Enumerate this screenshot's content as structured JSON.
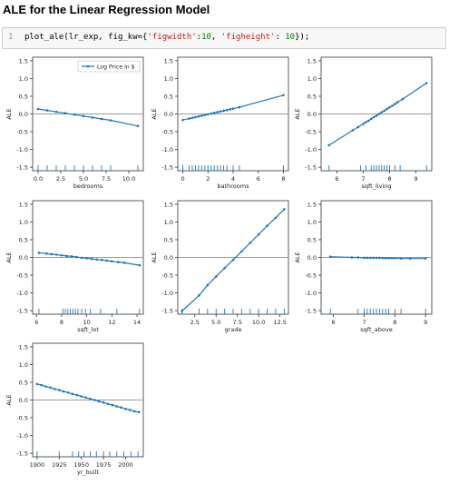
{
  "heading": "ALE for the Linear Regression Model",
  "cell": {
    "line_number": "1",
    "code_parts": [
      {
        "t": "plot_ale(lr_exp, fig_kw={",
        "c": ""
      },
      {
        "t": "'figwidth'",
        "c": "s"
      },
      {
        "t": ":",
        "c": ""
      },
      {
        "t": "10",
        "c": "n"
      },
      {
        "t": ", ",
        "c": ""
      },
      {
        "t": "'figheight'",
        "c": "s"
      },
      {
        "t": ": ",
        "c": ""
      },
      {
        "t": "10",
        "c": "n"
      },
      {
        "t": "});",
        "c": ""
      }
    ]
  },
  "colors": {
    "line": "#1f77b4",
    "zero": "#9a9a9a",
    "axis": "#333333"
  },
  "chart_data": [
    {
      "type": "line",
      "xlabel": "bedrooms",
      "ylabel": "ALE",
      "xlim": [
        -0.6,
        11.6
      ],
      "ylim": [
        -1.6,
        1.6
      ],
      "xticks": [
        0.0,
        2.5,
        5.0,
        7.5,
        10.0
      ],
      "xtick_labels": [
        "0.0",
        "2.5",
        "5.0",
        "7.5",
        "10.0"
      ],
      "yticks": [
        -1.5,
        -1.0,
        -0.5,
        0.0,
        0.5,
        1.0,
        1.5
      ],
      "ytick_labels": [
        "-1.5",
        "-1.0",
        "-0.5",
        "0.0",
        "0.5",
        "1.0",
        "1.5"
      ],
      "legend": {
        "label": "Log Price in $",
        "placement": "upper-right"
      },
      "series": [
        {
          "name": "Log Price in $",
          "x": [
            0,
            1,
            2,
            3,
            4,
            5,
            6,
            7,
            8,
            11
          ],
          "y": [
            0.14,
            0.1,
            0.06,
            0.02,
            -0.02,
            -0.06,
            -0.1,
            -0.14,
            -0.18,
            -0.34
          ]
        }
      ],
      "rug": [
        0,
        1,
        2,
        3,
        4,
        5,
        6,
        7,
        8,
        11
      ]
    },
    {
      "type": "line",
      "xlabel": "bathrooms",
      "ylabel": "ALE",
      "xlim": [
        -0.4,
        8.4
      ],
      "ylim": [
        -1.6,
        1.6
      ],
      "xticks": [
        0,
        2,
        4,
        6,
        8
      ],
      "xtick_labels": [
        "0",
        "2",
        "4",
        "6",
        "8"
      ],
      "yticks": [
        -1.5,
        -1.0,
        -0.5,
        0.0,
        0.5,
        1.0,
        1.5
      ],
      "ytick_labels": [
        "-1.5",
        "-1.0",
        "-0.5",
        "0.0",
        "0.5",
        "1.0",
        "1.5"
      ],
      "series": [
        {
          "x": [
            0,
            0.5,
            0.75,
            1,
            1.25,
            1.5,
            1.75,
            2,
            2.25,
            2.5,
            2.75,
            3,
            3.25,
            3.5,
            3.75,
            4,
            4.5,
            8
          ],
          "y": [
            -0.17,
            -0.13,
            -0.11,
            -0.09,
            -0.07,
            -0.05,
            -0.03,
            -0.01,
            0.01,
            0.03,
            0.05,
            0.07,
            0.09,
            0.11,
            0.13,
            0.15,
            0.19,
            0.53
          ]
        }
      ],
      "rug": [
        0,
        0.5,
        0.75,
        1,
        1.25,
        1.5,
        1.75,
        2,
        2.25,
        2.5,
        2.75,
        3,
        3.25,
        3.5,
        4,
        4.5,
        8
      ]
    },
    {
      "type": "line",
      "xlabel": "sqft_living",
      "ylabel": "ALE",
      "xlim": [
        5.4,
        9.6
      ],
      "ylim": [
        -1.6,
        1.6
      ],
      "xticks": [
        6,
        7,
        8,
        9
      ],
      "xtick_labels": [
        "6",
        "7",
        "8",
        "9"
      ],
      "yticks": [
        -1.5,
        -1.0,
        -0.5,
        0.0,
        0.5,
        1.0,
        1.5
      ],
      "ytick_labels": [
        "-1.5",
        "-1.0",
        "-0.5",
        "0.0",
        "0.5",
        "1.0",
        "1.5"
      ],
      "series": [
        {
          "x": [
            5.7,
            6.6,
            6.8,
            7.0,
            7.1,
            7.2,
            7.3,
            7.4,
            7.5,
            7.6,
            7.7,
            7.8,
            7.9,
            8.0,
            8.1,
            8.2,
            8.3,
            8.5,
            9.4
          ],
          "y": [
            -0.88,
            -0.46,
            -0.37,
            -0.28,
            -0.23,
            -0.19,
            -0.14,
            -0.09,
            -0.05,
            0.0,
            0.05,
            0.09,
            0.14,
            0.19,
            0.23,
            0.28,
            0.33,
            0.42,
            0.87
          ]
        }
      ],
      "rug": [
        5.7,
        6.9,
        7.1,
        7.3,
        7.4,
        7.5,
        7.6,
        7.7,
        7.8,
        7.9,
        8.0,
        8.2,
        8.4,
        9.4
      ]
    },
    {
      "type": "line",
      "xlabel": "sqft_lot",
      "ylabel": "ALE",
      "xlim": [
        5.7,
        14.5
      ],
      "ylim": [
        -1.6,
        1.6
      ],
      "xticks": [
        6,
        8,
        10,
        12,
        14
      ],
      "xtick_labels": [
        "6",
        "8",
        "10",
        "12",
        "14"
      ],
      "yticks": [
        -1.5,
        -1.0,
        -0.5,
        0.0,
        0.5,
        1.0,
        1.5
      ],
      "ytick_labels": [
        "-1.5",
        "-1.0",
        "-0.5",
        "0.0",
        "0.5",
        "1.0",
        "1.5"
      ],
      "series": [
        {
          "x": [
            6.2,
            6.8,
            7.2,
            7.6,
            8.0,
            8.4,
            8.8,
            9.2,
            9.6,
            10.0,
            10.4,
            10.8,
            11.2,
            11.6,
            12.0,
            12.5,
            13.0,
            14.2
          ],
          "y": [
            0.13,
            0.11,
            0.09,
            0.08,
            0.06,
            0.04,
            0.03,
            0.01,
            -0.01,
            -0.02,
            -0.04,
            -0.06,
            -0.07,
            -0.09,
            -0.11,
            -0.13,
            -0.15,
            -0.22
          ]
        }
      ],
      "rug": [
        6.2,
        8.1,
        8.3,
        8.5,
        8.7,
        8.9,
        9.1,
        9.3,
        9.6,
        9.9,
        10.3,
        11.1,
        12.4,
        14.2
      ]
    },
    {
      "type": "line",
      "xlabel": "grade",
      "ylabel": "ALE",
      "xlim": [
        0.5,
        13.5
      ],
      "ylim": [
        -1.6,
        1.6
      ],
      "xticks": [
        2.5,
        5.0,
        7.5,
        10.0,
        12.5
      ],
      "xtick_labels": [
        "2.5",
        "5.0",
        "7.5",
        "10.0",
        "12.5"
      ],
      "yticks": [
        -1.5,
        -1.0,
        -0.5,
        0.0,
        0.5,
        1.0,
        1.5
      ],
      "ytick_labels": [
        "-1.5",
        "-1.0",
        "-0.5",
        "0.0",
        "0.5",
        "1.0",
        "1.5"
      ],
      "series": [
        {
          "x": [
            1,
            3,
            4,
            5,
            6,
            7,
            8,
            9,
            10,
            11,
            12,
            13
          ],
          "y": [
            -1.51,
            -1.07,
            -0.78,
            -0.54,
            -0.3,
            -0.07,
            0.17,
            0.41,
            0.65,
            0.89,
            1.12,
            1.36
          ]
        }
      ],
      "rug": [
        1,
        3,
        4,
        5,
        6,
        7,
        8,
        9,
        10,
        11,
        12,
        13
      ]
    },
    {
      "type": "line",
      "xlabel": "sqft_above",
      "ylabel": "ALE",
      "xlim": [
        5.6,
        9.2
      ],
      "ylim": [
        -1.6,
        1.6
      ],
      "xticks": [
        6,
        7,
        8,
        9
      ],
      "xtick_labels": [
        "6",
        "7",
        "8",
        "9"
      ],
      "yticks": [
        -1.5,
        -1.0,
        -0.5,
        0.0,
        0.5,
        1.0,
        1.5
      ],
      "ytick_labels": [
        "-1.5",
        "-1.0",
        "-0.5",
        "0.0",
        "0.5",
        "1.0",
        "1.5"
      ],
      "series": [
        {
          "x": [
            5.9,
            6.6,
            6.8,
            7.0,
            7.1,
            7.2,
            7.3,
            7.4,
            7.5,
            7.6,
            7.7,
            7.8,
            7.9,
            8.0,
            8.2,
            8.5,
            9.0
          ],
          "y": [
            0.02,
            0.0,
            0.0,
            -0.01,
            -0.01,
            -0.01,
            -0.01,
            -0.01,
            -0.01,
            -0.02,
            -0.02,
            -0.02,
            -0.02,
            -0.02,
            -0.03,
            -0.03,
            -0.03
          ]
        }
      ],
      "rug": [
        5.9,
        6.8,
        7.0,
        7.1,
        7.2,
        7.3,
        7.4,
        7.5,
        7.6,
        7.7,
        7.8,
        8.0,
        8.2,
        9.0
      ]
    },
    {
      "type": "line",
      "xlabel": "yr_built",
      "ylabel": "ALE",
      "xlim": [
        1895,
        2020
      ],
      "ylim": [
        -1.6,
        1.6
      ],
      "xticks": [
        1900,
        1925,
        1950,
        1975,
        2000
      ],
      "xtick_labels": [
        "1900",
        "1925",
        "1950",
        "1975",
        "2000"
      ],
      "yticks": [
        -1.5,
        -1.0,
        -0.5,
        0.0,
        0.5,
        1.0,
        1.5
      ],
      "ytick_labels": [
        "-1.5",
        "-1.0",
        "-0.5",
        "0.0",
        "0.5",
        "1.0",
        "1.5"
      ],
      "series": [
        {
          "x": [
            1900,
            1905,
            1910,
            1915,
            1920,
            1925,
            1930,
            1935,
            1940,
            1945,
            1950,
            1955,
            1960,
            1965,
            1970,
            1975,
            1980,
            1985,
            1990,
            1995,
            2000,
            2005,
            2010,
            2015
          ],
          "y": [
            0.45,
            0.42,
            0.38,
            0.35,
            0.31,
            0.28,
            0.24,
            0.21,
            0.17,
            0.14,
            0.1,
            0.07,
            0.03,
            0.0,
            -0.04,
            -0.07,
            -0.11,
            -0.14,
            -0.18,
            -0.21,
            -0.25,
            -0.28,
            -0.32,
            -0.34
          ]
        }
      ],
      "rug": [
        1900,
        1925,
        1940,
        1947,
        1953,
        1960,
        1967,
        1975,
        1982,
        1990,
        1998,
        2006,
        2014
      ]
    }
  ]
}
